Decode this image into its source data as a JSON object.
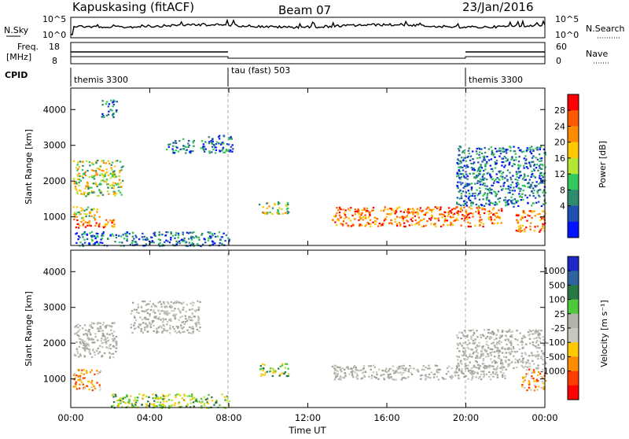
{
  "header": {
    "station": "Kapuskasing (fitACF)",
    "beam": "Beam 07",
    "date": "23/Jan/2016"
  },
  "top_panels": {
    "nsky_label": "N.Sky",
    "nsky_ticks": [
      "10^5",
      "10^0"
    ],
    "nsearch_label": "N.Search",
    "nsearch_ticks": [
      "10^5",
      "10^0"
    ],
    "freq_label_1": "Freq.",
    "freq_label_2": "[MHz]",
    "freq_ticks": [
      "18",
      "8"
    ],
    "nave_label": "Nave",
    "nave_ticks": [
      "60",
      "0"
    ],
    "cpid_label": "CPID",
    "cpid_segments": [
      "themis 3300",
      "tau (fast) 503",
      "themis 3300"
    ]
  },
  "chart_data": [
    {
      "type": "heatmap",
      "title": "",
      "ylabel": "Slant Range [km]",
      "ylim": [
        200,
        4600
      ],
      "yticks": [
        "1000",
        "2000",
        "3000",
        "4000"
      ],
      "x_range_hours": [
        0,
        24
      ],
      "colorbar": {
        "label": "Power [dB]",
        "ticks": [
          "28",
          "24",
          "20",
          "16",
          "12",
          "8",
          "4"
        ],
        "colors": [
          "#ff0000",
          "#ff5a00",
          "#ff8c00",
          "#ffc800",
          "#b4e632",
          "#32c85a",
          "#2d8c6e",
          "#1e50b4",
          "#0014ff"
        ]
      },
      "echo_regions": [
        {
          "t0": 0.1,
          "t1": 2.3,
          "r0": 700,
          "r1": 950,
          "level": "strong"
        },
        {
          "t0": 0.1,
          "t1": 1.5,
          "r0": 950,
          "r1": 1300,
          "level": "medium"
        },
        {
          "t0": 0.1,
          "t1": 2.6,
          "r0": 1600,
          "r1": 2600,
          "level": "medium"
        },
        {
          "t0": 0.2,
          "t1": 8.0,
          "r0": 200,
          "r1": 600,
          "level": "weak"
        },
        {
          "t0": 1.5,
          "t1": 2.3,
          "r0": 3800,
          "r1": 4300,
          "level": "weak"
        },
        {
          "t0": 4.8,
          "t1": 6.2,
          "r0": 2800,
          "r1": 3200,
          "level": "weak"
        },
        {
          "t0": 6.5,
          "t1": 8.2,
          "r0": 2800,
          "r1": 3300,
          "level": "weak"
        },
        {
          "t0": 9.5,
          "t1": 11.0,
          "r0": 1100,
          "r1": 1450,
          "level": "medium"
        },
        {
          "t0": 13.2,
          "t1": 21.8,
          "r0": 750,
          "r1": 1300,
          "level": "strong"
        },
        {
          "t0": 19.5,
          "t1": 24.0,
          "r0": 1300,
          "r1": 3000,
          "level": "weak"
        },
        {
          "t0": 22.5,
          "t1": 24.0,
          "r0": 600,
          "r1": 1200,
          "level": "strong"
        }
      ]
    },
    {
      "type": "heatmap",
      "title": "",
      "ylabel": "Slant Range [km]",
      "ylim": [
        200,
        4600
      ],
      "yticks": [
        "1000",
        "2000",
        "3000",
        "4000"
      ],
      "x_range_hours": [
        0,
        24
      ],
      "colorbar": {
        "label": "Velocity [m s⁻¹]",
        "ticks": [
          "1000",
          "500",
          "100",
          "25",
          "-25",
          "-100",
          "-500",
          "-1000"
        ],
        "colors": [
          "#1e28c8",
          "#2d64a0",
          "#287846",
          "#50c83c",
          "#b4b4aa",
          "#c8c8be",
          "#ffc800",
          "#ff8c00",
          "#ff3c00",
          "#ff0000"
        ]
      },
      "echo_regions": [
        {
          "t0": 0.1,
          "t1": 2.3,
          "r0": 1600,
          "r1": 2600,
          "level": "ground"
        },
        {
          "t0": 0.1,
          "t1": 1.5,
          "r0": 700,
          "r1": 1300,
          "level": "negative"
        },
        {
          "t0": 2.0,
          "t1": 8.0,
          "r0": 200,
          "r1": 600,
          "level": "positive"
        },
        {
          "t0": 3.0,
          "t1": 6.5,
          "r0": 2300,
          "r1": 3200,
          "level": "ground"
        },
        {
          "t0": 9.5,
          "t1": 11.0,
          "r0": 1100,
          "r1": 1450,
          "level": "positive"
        },
        {
          "t0": 13.2,
          "t1": 22.0,
          "r0": 1000,
          "r1": 1400,
          "level": "ground"
        },
        {
          "t0": 19.5,
          "t1": 24.0,
          "r0": 1300,
          "r1": 2400,
          "level": "ground"
        },
        {
          "t0": 22.8,
          "t1": 24.0,
          "r0": 700,
          "r1": 1300,
          "level": "negative"
        }
      ]
    }
  ],
  "x_axis": {
    "ticks": [
      "00:00",
      "04:00",
      "08:00",
      "12:00",
      "16:00",
      "20:00",
      "00:00"
    ],
    "label": "Time UT"
  }
}
